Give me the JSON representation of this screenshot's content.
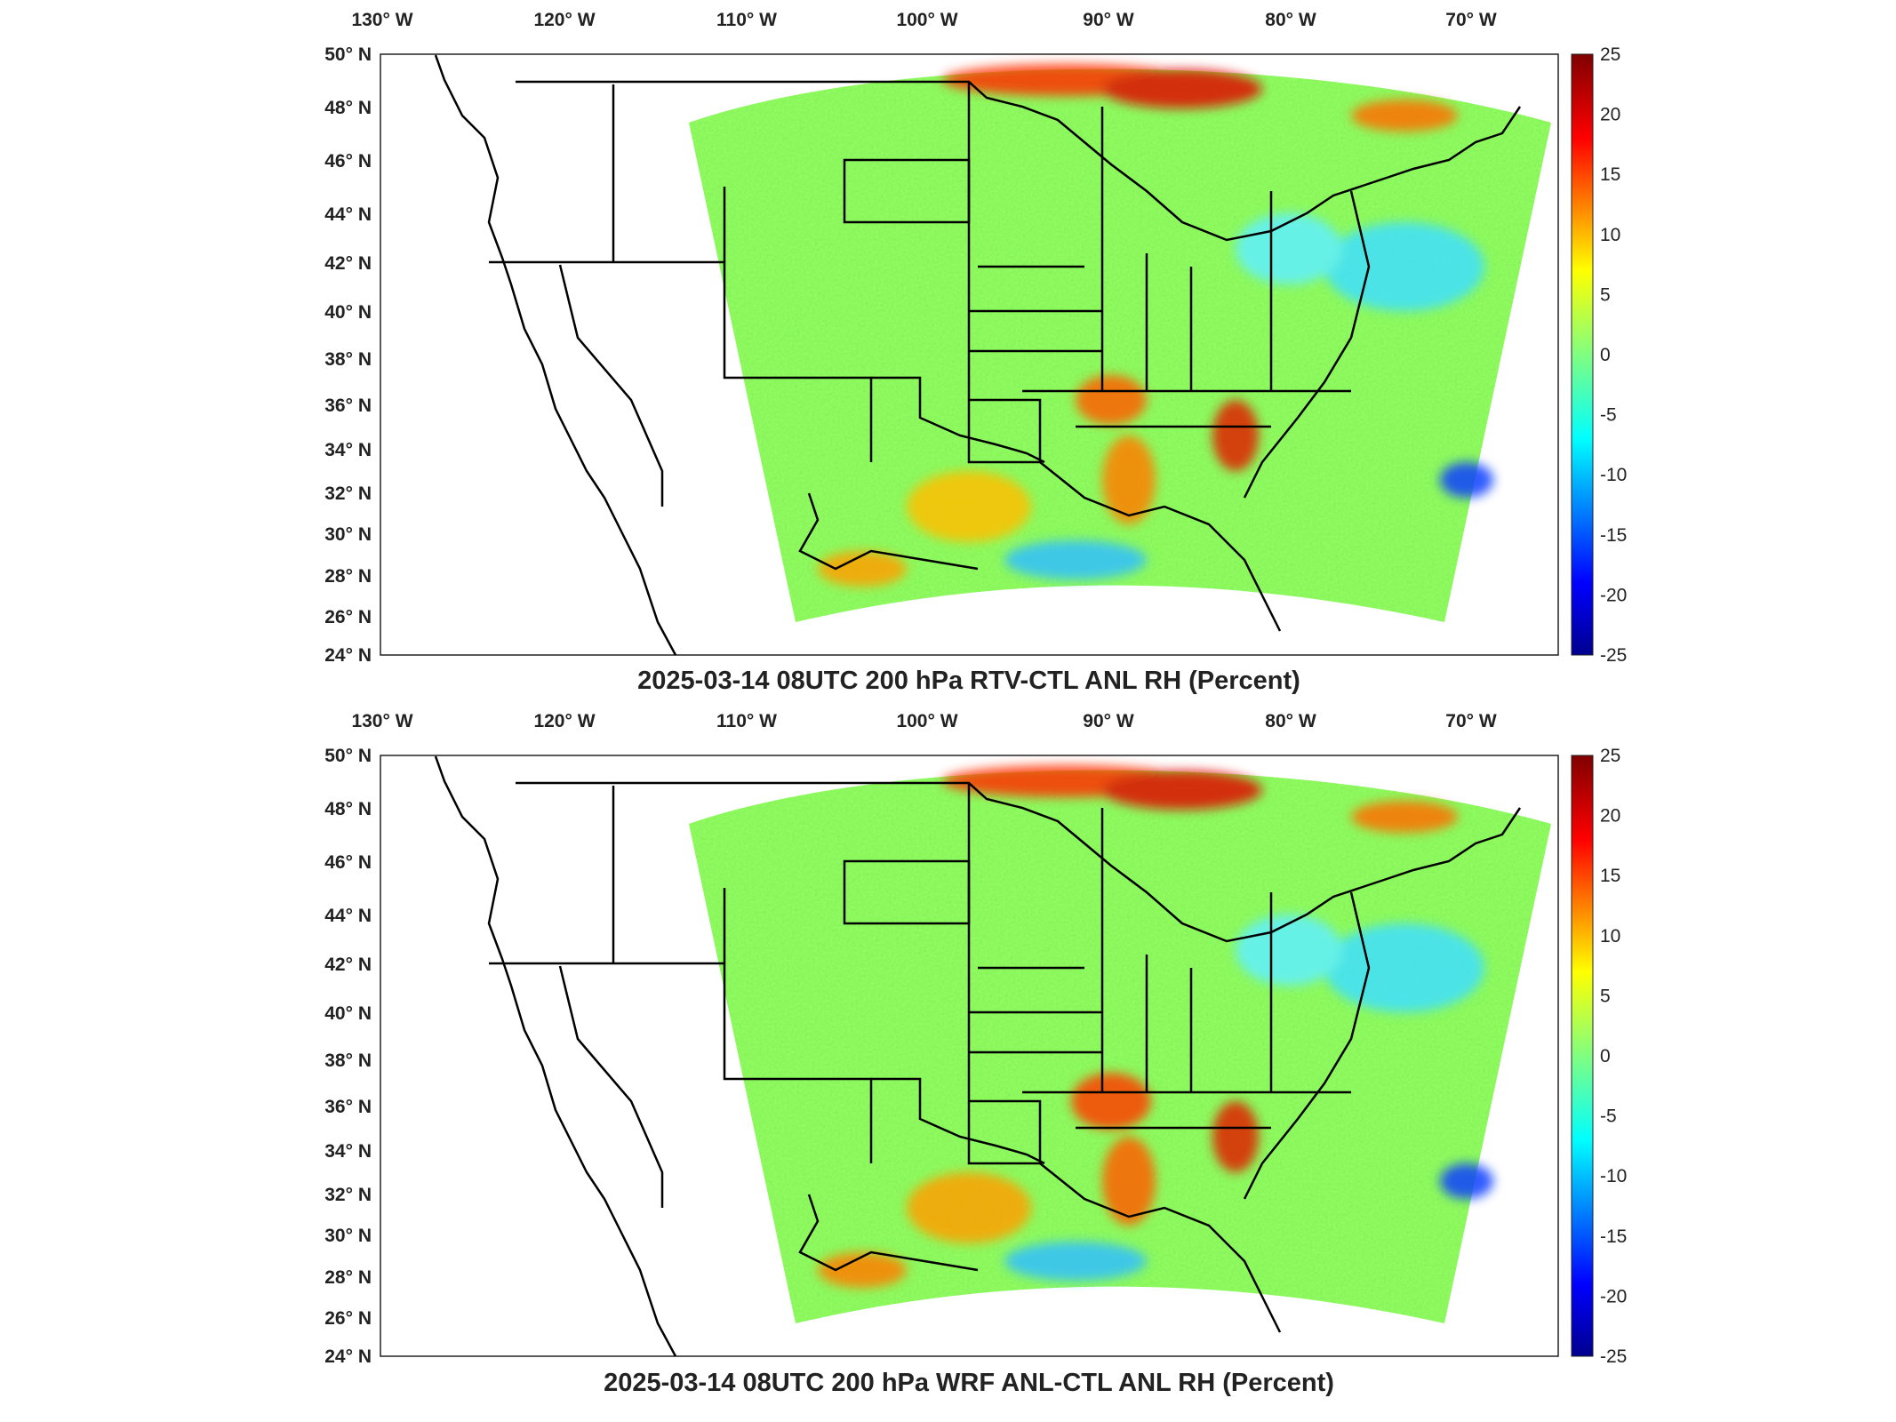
{
  "figure": {
    "colorbar": {
      "ticks": [
        "25",
        "20",
        "15",
        "10",
        "5",
        "0",
        "-5",
        "-10",
        "-15",
        "-20",
        "-25"
      ],
      "colormap": [
        "#00008f",
        "#0000ff",
        "#0080ff",
        "#00ffff",
        "#80ff80",
        "#ffff00",
        "#ff8000",
        "#ff0000",
        "#800000"
      ]
    },
    "lon_labels": [
      "130° W",
      "120° W",
      "110° W",
      "100° W",
      "90° W",
      "80° W",
      "70° W"
    ],
    "lat_labels": [
      "50° N",
      "48° N",
      "46° N",
      "44° N",
      "42° N",
      "40° N",
      "38° N",
      "36° N",
      "34° N",
      "32° N",
      "30° N",
      "28° N",
      "26° N",
      "24° N"
    ],
    "panels": [
      {
        "title": "2025-03-14 08UTC 200 hPa RTV-CTL ANL RH (Percent)"
      },
      {
        "title": "2025-03-14 08UTC 200 hPa WRF ANL-CTL ANL RH (Percent)"
      }
    ]
  }
}
